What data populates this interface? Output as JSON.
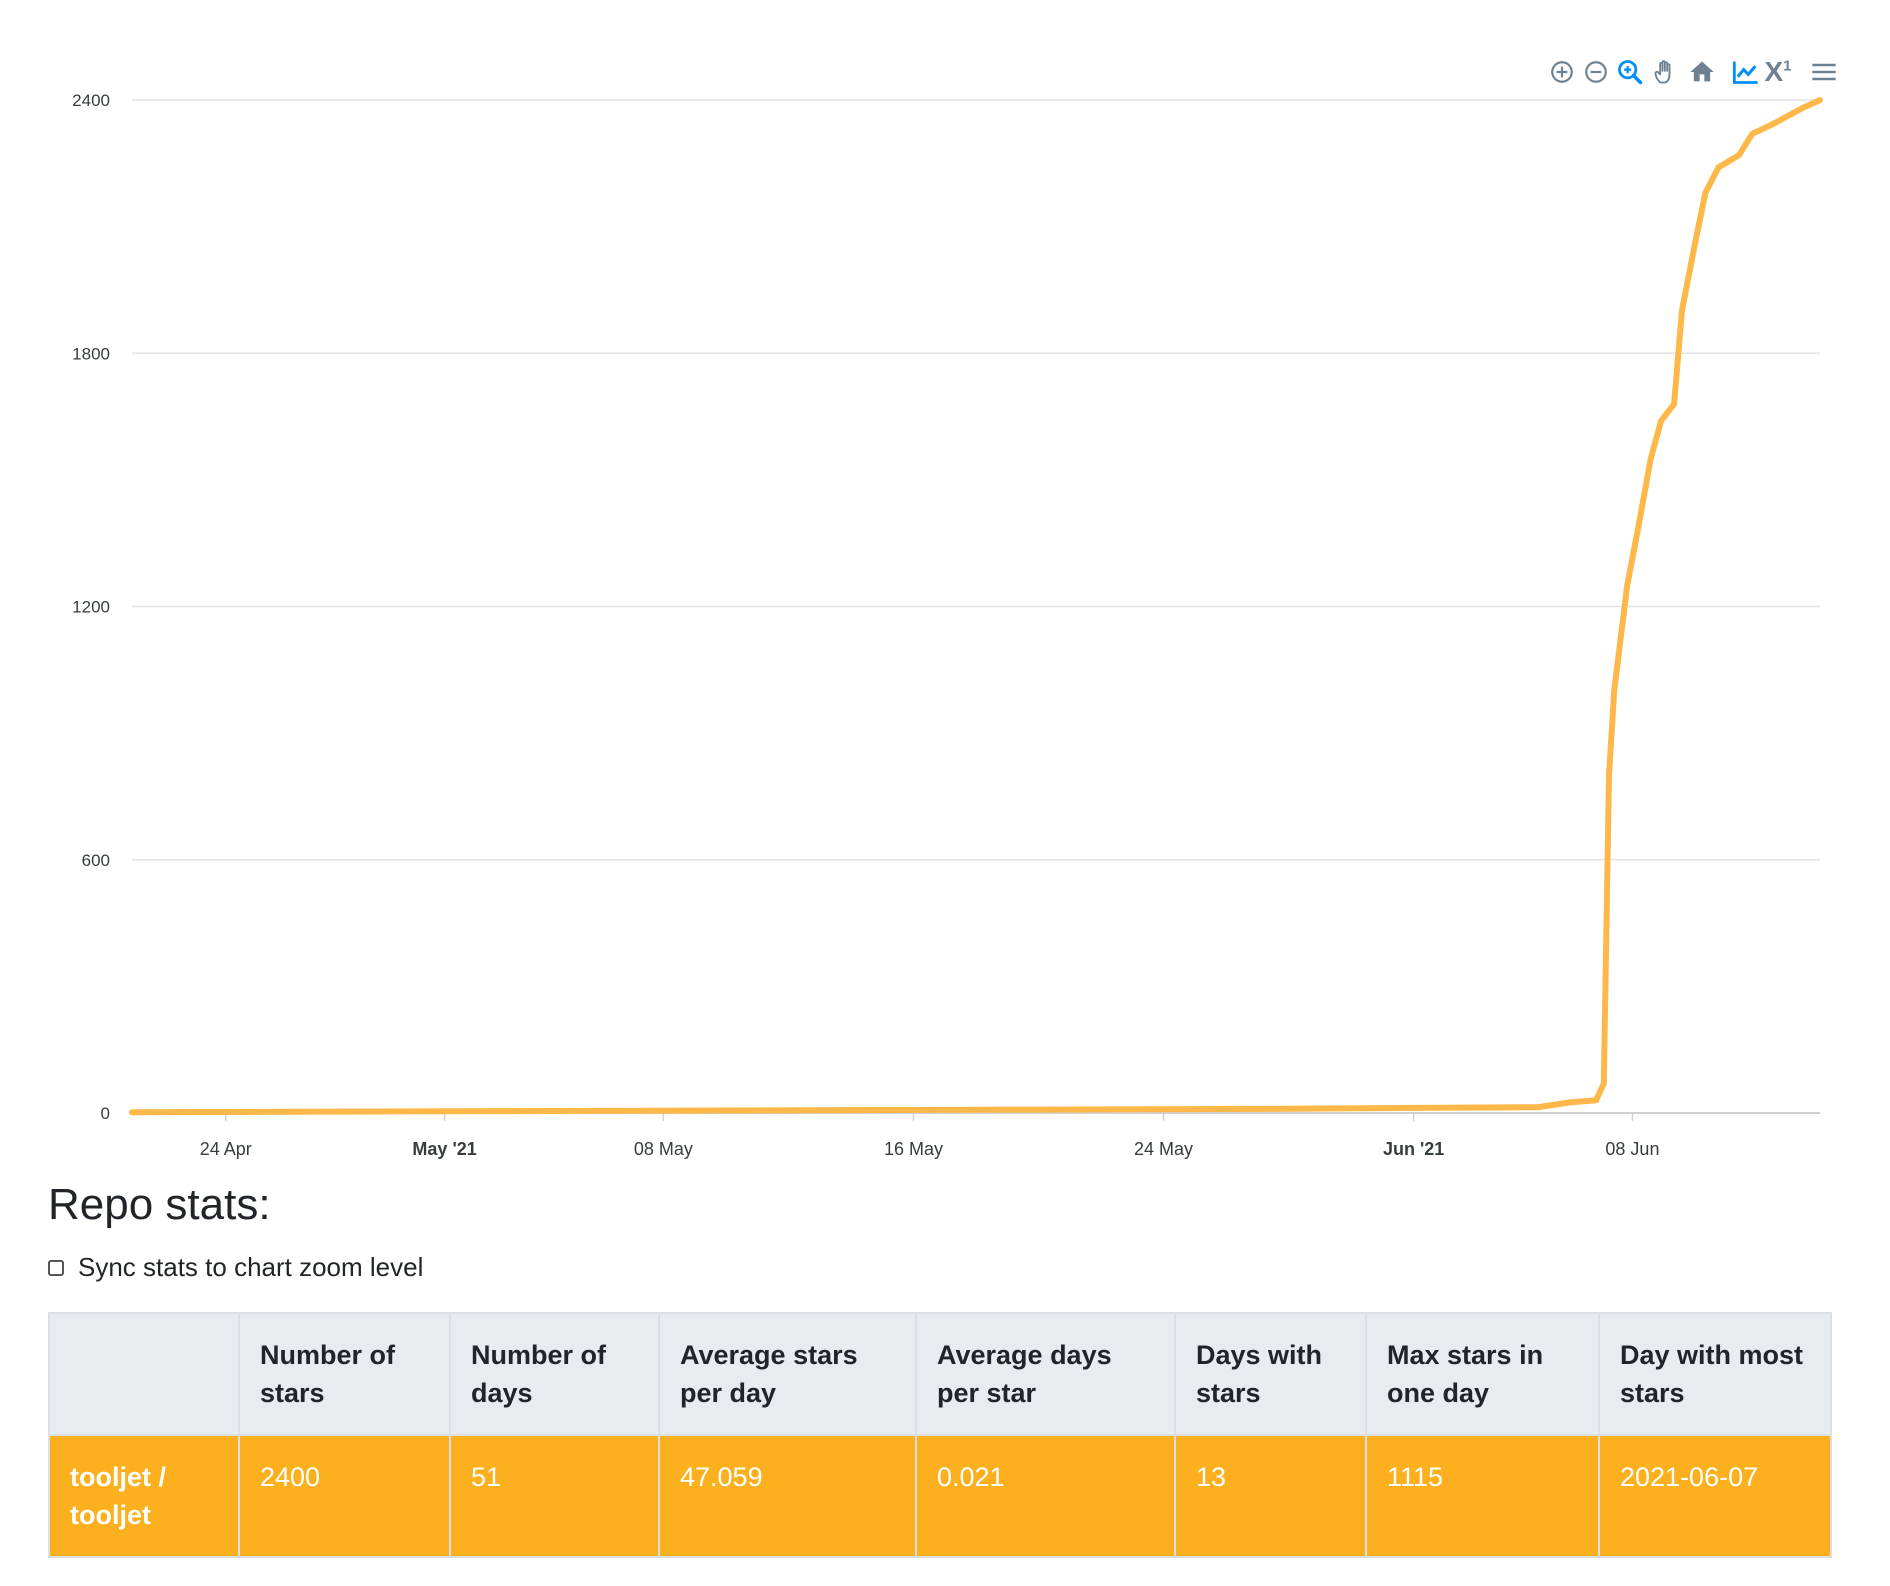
{
  "toolbar": {
    "icons": [
      "zoom-in-icon",
      "zoom-out-icon",
      "selection-zoom-icon",
      "pan-hand-icon",
      "home-icon",
      "line-chart-icon",
      "x-superscript-icon",
      "menu-icon"
    ],
    "x1_label": "X",
    "x1_sup": "1"
  },
  "chart_data": {
    "type": "line",
    "title": "",
    "xlabel": "",
    "ylabel": "",
    "ylim": [
      0,
      2400
    ],
    "xlim": [
      "2021-04-21",
      "2021-06-14"
    ],
    "y_ticks": [
      "0",
      "600",
      "1200",
      "1800",
      "2400"
    ],
    "x_ticks": [
      {
        "date": "2021-04-24",
        "label": "24 Apr",
        "bold": false
      },
      {
        "date": "2021-05-01",
        "label": "May '21",
        "bold": true
      },
      {
        "date": "2021-05-08",
        "label": "08 May",
        "bold": false
      },
      {
        "date": "2021-05-16",
        "label": "16 May",
        "bold": false
      },
      {
        "date": "2021-05-24",
        "label": "24 May",
        "bold": false
      },
      {
        "date": "2021-06-01",
        "label": "Jun '21",
        "bold": true
      },
      {
        "date": "2021-06-08",
        "label": "08 Jun",
        "bold": false
      }
    ],
    "grid": true,
    "series_color": "#feb84a",
    "points": [
      [
        "2021-04-21",
        2
      ],
      [
        "2021-05-01",
        4
      ],
      [
        "2021-05-10",
        6
      ],
      [
        "2021-05-20",
        8
      ],
      [
        "2021-05-28",
        10
      ],
      [
        "2021-06-01",
        12
      ],
      [
        "2021-06-05",
        14
      ],
      [
        "2021-06-06",
        25
      ],
      [
        "2021-06-06T20:00",
        30
      ],
      [
        "2021-06-07T02:00",
        70
      ],
      [
        "2021-06-07T06:00",
        800
      ],
      [
        "2021-06-07T10:00",
        1000
      ],
      [
        "2021-06-07T20:00",
        1250
      ],
      [
        "2021-06-08T04:00",
        1380
      ],
      [
        "2021-06-08T14:00",
        1550
      ],
      [
        "2021-06-08T22:00",
        1640
      ],
      [
        "2021-06-09T08:00",
        1680
      ],
      [
        "2021-06-09T14:00",
        1900
      ],
      [
        "2021-06-10T00:00",
        2060
      ],
      [
        "2021-06-10T08:00",
        2180
      ],
      [
        "2021-06-10T18:00",
        2240
      ],
      [
        "2021-06-11T10:00",
        2270
      ],
      [
        "2021-06-11T20:00",
        2320
      ],
      [
        "2021-06-12T10:00",
        2340
      ],
      [
        "2021-06-12T22:00",
        2360
      ],
      [
        "2021-06-13T10:00",
        2380
      ],
      [
        "2021-06-14",
        2400
      ]
    ]
  },
  "stats": {
    "title": "Repo stats:",
    "sync_label": "Sync stats to chart zoom level",
    "sync_checked": false,
    "headers": [
      "",
      "Number of stars",
      "Number of days",
      "Average stars per day",
      "Average days per star",
      "Days with stars",
      "Max stars in one day",
      "Day with most stars"
    ],
    "rows": [
      [
        "tooljet / tooljet",
        "2400",
        "51",
        "47.059",
        "0.021",
        "13",
        "1115",
        "2021-06-07"
      ]
    ],
    "row_color": "#fcb01e"
  }
}
